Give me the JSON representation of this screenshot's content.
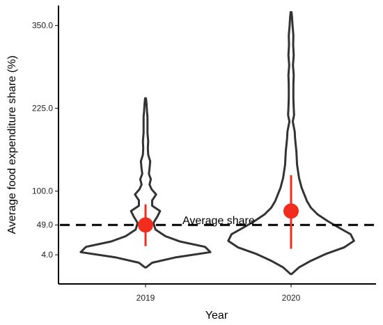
{
  "chart_data": {
    "type": "violin",
    "title": "",
    "xlabel": "Year",
    "ylabel": "Average food expenditure share (%)",
    "categories": [
      "2019",
      "2020"
    ],
    "y_ticks": [
      4.0,
      49.0,
      100.0,
      225.0,
      350.0
    ],
    "y_tick_labels": [
      "4.0",
      "49.0",
      "100.0",
      "225.0",
      "350.0"
    ],
    "ylim": [
      -40,
      380
    ],
    "grid": false,
    "legend": "none",
    "reference_line": {
      "value": 49,
      "label": "Average share",
      "style": "dashed",
      "color": "#000000"
    },
    "summary": [
      {
        "category": "2019",
        "mean": 49,
        "interval_low": 17,
        "interval_high": 80
      },
      {
        "category": "2020",
        "mean": 70,
        "interval_low": 13,
        "interval_high": 124
      }
    ],
    "violins": [
      {
        "category": "2019",
        "min": -15,
        "max": 240,
        "density": [
          [
            -15,
            0.01
          ],
          [
            -8,
            0.1
          ],
          [
            0,
            0.45
          ],
          [
            8,
            0.98
          ],
          [
            16,
            0.9
          ],
          [
            24,
            0.52
          ],
          [
            32,
            0.3
          ],
          [
            42,
            0.15
          ],
          [
            52,
            0.12
          ],
          [
            62,
            0.18
          ],
          [
            70,
            0.22
          ],
          [
            78,
            0.1
          ],
          [
            86,
            0.1
          ],
          [
            95,
            0.16
          ],
          [
            103,
            0.09
          ],
          [
            110,
            0.06
          ],
          [
            118,
            0.08
          ],
          [
            126,
            0.05
          ],
          [
            134,
            0.06
          ],
          [
            145,
            0.07
          ],
          [
            155,
            0.04
          ],
          [
            165,
            0.035
          ],
          [
            175,
            0.04
          ],
          [
            188,
            0.03
          ],
          [
            200,
            0.03
          ],
          [
            212,
            0.03
          ],
          [
            220,
            0.022
          ],
          [
            232,
            0.015
          ],
          [
            240,
            0.006
          ]
        ]
      },
      {
        "category": "2020",
        "min": -25,
        "max": 370,
        "density": [
          [
            -25,
            0.01
          ],
          [
            -15,
            0.12
          ],
          [
            -5,
            0.3
          ],
          [
            5,
            0.52
          ],
          [
            15,
            0.8
          ],
          [
            25,
            0.95
          ],
          [
            35,
            0.9
          ],
          [
            45,
            0.72
          ],
          [
            55,
            0.55
          ],
          [
            65,
            0.4
          ],
          [
            75,
            0.3
          ],
          [
            85,
            0.24
          ],
          [
            95,
            0.2
          ],
          [
            105,
            0.16
          ],
          [
            120,
            0.12
          ],
          [
            140,
            0.09
          ],
          [
            160,
            0.08
          ],
          [
            180,
            0.06
          ],
          [
            190,
            0.055
          ],
          [
            205,
            0.025
          ],
          [
            215,
            0.045
          ],
          [
            225,
            0.04
          ],
          [
            240,
            0.035
          ],
          [
            260,
            0.035
          ],
          [
            275,
            0.04
          ],
          [
            290,
            0.028
          ],
          [
            305,
            0.04
          ],
          [
            320,
            0.032
          ],
          [
            335,
            0.035
          ],
          [
            350,
            0.022
          ],
          [
            362,
            0.015
          ],
          [
            370,
            0.006
          ]
        ]
      }
    ],
    "colors": {
      "violin_stroke": "#333333",
      "summary": "#f02d1e",
      "axis": "#000000"
    }
  }
}
